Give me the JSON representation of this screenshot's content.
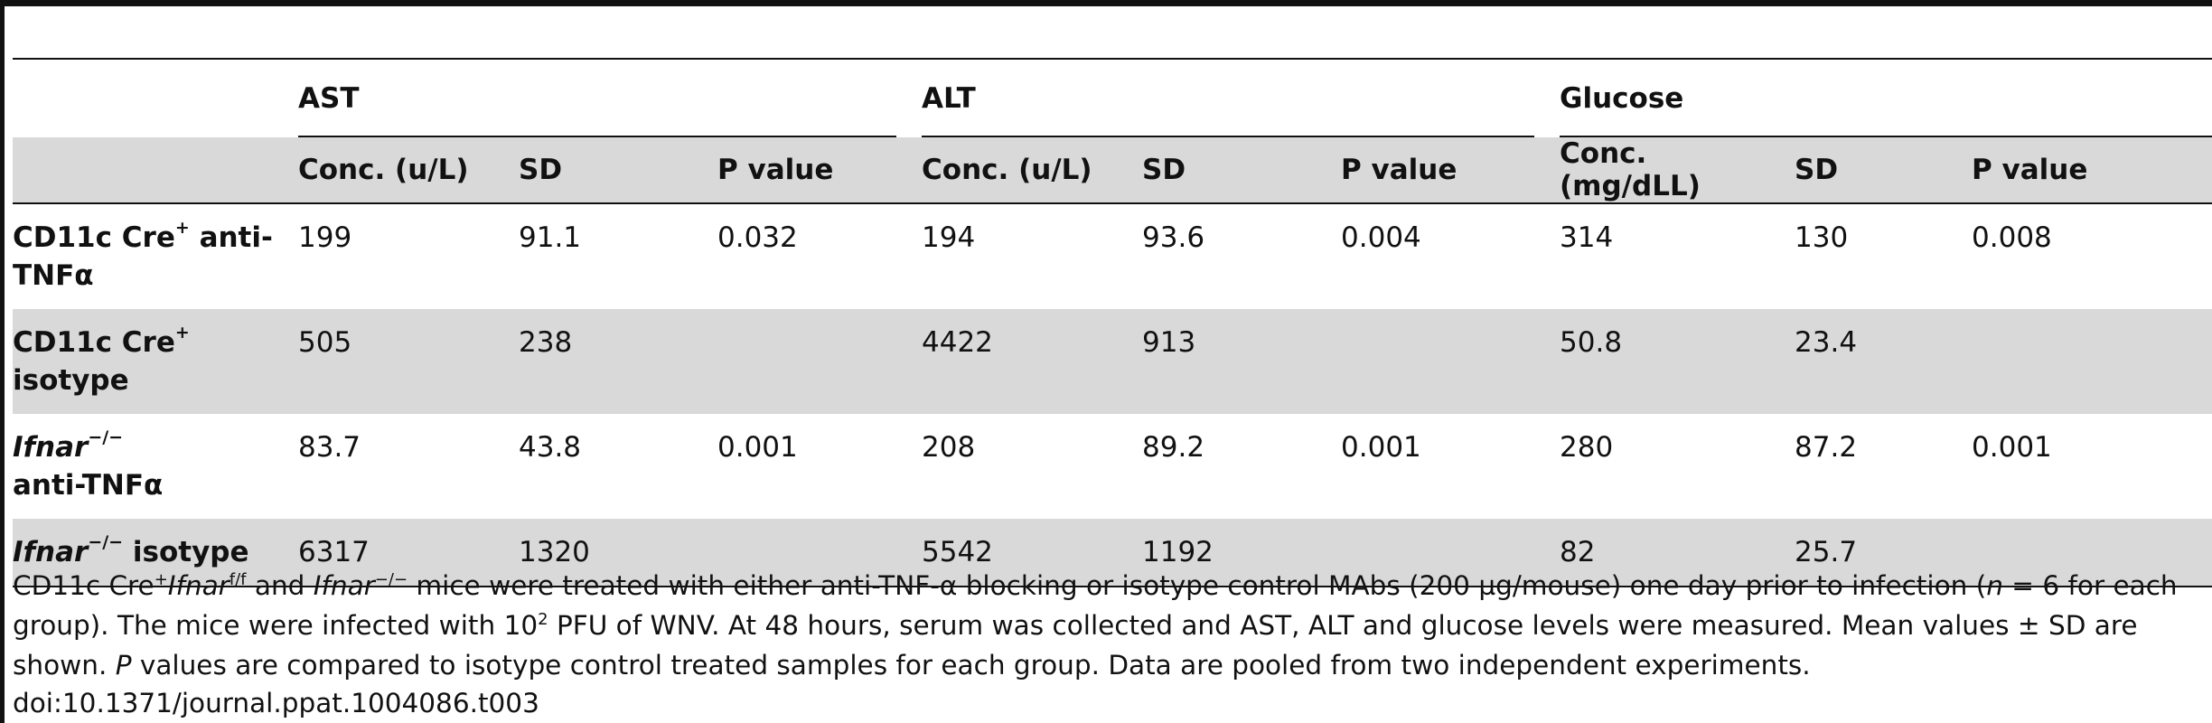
{
  "table": {
    "groups": [
      "AST",
      "ALT",
      "Glucose"
    ],
    "subheaders": {
      "ast": [
        "Conc. (u/L)",
        "SD",
        "P value"
      ],
      "alt": [
        "Conc. (u/L)",
        "SD",
        "P value"
      ],
      "glucose": [
        "Conc. (mg/dLL)",
        "SD",
        "P value"
      ]
    },
    "rows": [
      {
        "label_a": "CD11c Cre",
        "label_sup": "+",
        "label_b": " anti-TNFα",
        "values": [
          "199",
          "91.1",
          "0.032",
          "194",
          "93.6",
          "0.004",
          "314",
          "130",
          "0.008"
        ]
      },
      {
        "label_a": "CD11c Cre",
        "label_sup": "+",
        "label_b": " isotype",
        "values": [
          "505",
          "238",
          "",
          "4422",
          "913",
          "",
          "50.8",
          "23.4",
          ""
        ]
      },
      {
        "label_a": "Ifnar",
        "label_sup": "−/−",
        "label_b": " anti-TNFα",
        "values": [
          "83.7",
          "43.8",
          "0.001",
          "208",
          "89.2",
          "0.001",
          "280",
          "87.2",
          "0.001"
        ]
      },
      {
        "label_a": "Ifnar",
        "label_sup": "−/−",
        "label_b": " isotype",
        "values": [
          "6317",
          "1320",
          "",
          "5542",
          "1192",
          "",
          "82",
          "25.7",
          ""
        ]
      }
    ]
  },
  "caption": {
    "p1_a": "CD11c Cre",
    "p1_sup1": "+",
    "p1_it1": "Ifnar",
    "p1_sup2": "f/f",
    "p1_b": " and ",
    "p1_it2": "Ifnar",
    "p1_sup3": "−/−",
    "p1_c": " mice were treated with either anti-TNF-α blocking or isotype control MAbs (200 µg/mouse) one day prior to infection (",
    "p1_it3": "n",
    "p1_d": " = 6 for each group). The mice were infected with 10",
    "p1_sup4": "2",
    "p1_e": " PFU of WNV. At 48 hours, serum was collected and AST, ALT and glucose levels were measured. Mean values ± SD are shown. ",
    "p1_it4": "P",
    "p1_f": " values are compared to isotype control treated samples for each group. Data are pooled from two independent experiments."
  },
  "doi": "doi:10.1371/journal.ppat.1004086.t003"
}
